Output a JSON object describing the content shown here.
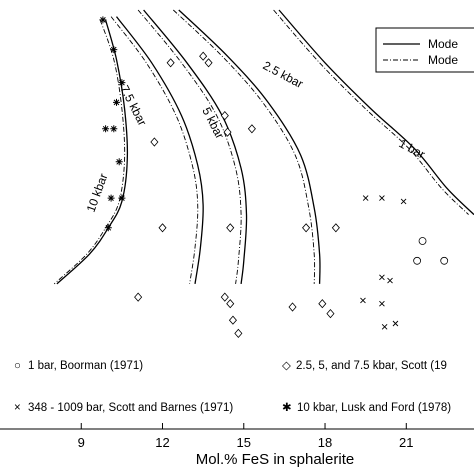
{
  "chart_data": {
    "type": "line",
    "xlabel": "Mol.% FeS in sphalerite",
    "ylabel": "",
    "xlim": [
      6,
      23.5
    ],
    "ylim": [
      0,
      1
    ],
    "xticks": [
      "9",
      "12",
      "15",
      "18",
      "21"
    ],
    "legend": {
      "placement": "top-right",
      "entries": [
        {
          "label": "Mode",
          "style": "solid"
        },
        {
          "label": "Mode",
          "style": "dashed"
        }
      ]
    },
    "curve_labels": [
      "10 kbar",
      "7.5 kbar",
      "5 kbar",
      "2.5 kbar",
      "1 bar"
    ],
    "curves": [
      {
        "name": "10 kbar",
        "solid": [
          [
            9.9,
            0.97
          ],
          [
            10.3,
            0.85
          ],
          [
            10.6,
            0.7
          ],
          [
            10.7,
            0.55
          ],
          [
            10.5,
            0.42
          ],
          [
            10.0,
            0.34
          ],
          [
            9.3,
            0.26
          ],
          [
            8.1,
            0.17
          ]
        ],
        "dashed": [
          [
            9.7,
            0.97
          ],
          [
            10.2,
            0.85
          ],
          [
            10.5,
            0.7
          ],
          [
            10.6,
            0.55
          ],
          [
            10.4,
            0.42
          ],
          [
            9.9,
            0.34
          ],
          [
            9.2,
            0.26
          ],
          [
            8.0,
            0.17
          ]
        ]
      },
      {
        "name": "7.5 kbar",
        "solid": [
          [
            10.3,
            0.98
          ],
          [
            11.6,
            0.84
          ],
          [
            12.7,
            0.68
          ],
          [
            13.3,
            0.53
          ],
          [
            13.5,
            0.41
          ],
          [
            13.4,
            0.28
          ],
          [
            13.2,
            0.17
          ]
        ],
        "dashed": [
          [
            10.1,
            0.98
          ],
          [
            11.4,
            0.84
          ],
          [
            12.5,
            0.68
          ],
          [
            13.1,
            0.53
          ],
          [
            13.3,
            0.41
          ],
          [
            13.2,
            0.28
          ],
          [
            13.0,
            0.17
          ]
        ]
      },
      {
        "name": "5 kbar",
        "solid": [
          [
            11.3,
            1.0
          ],
          [
            12.9,
            0.84
          ],
          [
            14.2,
            0.68
          ],
          [
            14.9,
            0.52
          ],
          [
            15.1,
            0.38
          ],
          [
            15.0,
            0.24
          ],
          [
            14.9,
            0.17
          ]
        ],
        "dashed": [
          [
            11.1,
            1.0
          ],
          [
            12.7,
            0.84
          ],
          [
            14.0,
            0.68
          ],
          [
            14.7,
            0.52
          ],
          [
            14.9,
            0.38
          ],
          [
            14.8,
            0.24
          ],
          [
            14.7,
            0.17
          ]
        ]
      },
      {
        "name": "2.5 kbar",
        "solid": [
          [
            12.6,
            1.0
          ],
          [
            14.4,
            0.86
          ],
          [
            15.9,
            0.72
          ],
          [
            17.1,
            0.56
          ],
          [
            17.6,
            0.4
          ],
          [
            17.8,
            0.26
          ],
          [
            17.8,
            0.17
          ]
        ],
        "dashed": [
          [
            12.4,
            1.0
          ],
          [
            14.2,
            0.86
          ],
          [
            15.7,
            0.72
          ],
          [
            16.9,
            0.56
          ],
          [
            17.4,
            0.4
          ],
          [
            17.6,
            0.26
          ],
          [
            17.6,
            0.17
          ]
        ]
      },
      {
        "name": "1 bar",
        "solid": [
          [
            16.3,
            1.0
          ],
          [
            18.0,
            0.84
          ],
          [
            19.7,
            0.7
          ],
          [
            21.3,
            0.58
          ],
          [
            22.5,
            0.46
          ],
          [
            23.5,
            0.38
          ]
        ],
        "dashed": [
          [
            16.1,
            1.0
          ],
          [
            17.8,
            0.84
          ],
          [
            19.5,
            0.7
          ],
          [
            21.1,
            0.58
          ],
          [
            22.3,
            0.46
          ],
          [
            23.3,
            0.38
          ]
        ]
      }
    ],
    "points": [
      {
        "marker": "star",
        "x": 9.8,
        "y": 0.97
      },
      {
        "marker": "star",
        "x": 10.2,
        "y": 0.88
      },
      {
        "marker": "star",
        "x": 10.5,
        "y": 0.78
      },
      {
        "marker": "star",
        "x": 10.3,
        "y": 0.72
      },
      {
        "marker": "star",
        "x": 9.9,
        "y": 0.64
      },
      {
        "marker": "star",
        "x": 10.2,
        "y": 0.64
      },
      {
        "marker": "star",
        "x": 10.4,
        "y": 0.54
      },
      {
        "marker": "star",
        "x": 10.5,
        "y": 0.43
      },
      {
        "marker": "star",
        "x": 10.1,
        "y": 0.43
      },
      {
        "marker": "star",
        "x": 10.0,
        "y": 0.34
      },
      {
        "marker": "diamond",
        "x": 12.3,
        "y": 0.84
      },
      {
        "marker": "diamond",
        "x": 13.5,
        "y": 0.86
      },
      {
        "marker": "diamond",
        "x": 13.7,
        "y": 0.84
      },
      {
        "marker": "diamond",
        "x": 14.3,
        "y": 0.68
      },
      {
        "marker": "diamond",
        "x": 11.7,
        "y": 0.6
      },
      {
        "marker": "diamond",
        "x": 14.4,
        "y": 0.63
      },
      {
        "marker": "diamond",
        "x": 15.3,
        "y": 0.64
      },
      {
        "marker": "diamond",
        "x": 12.0,
        "y": 0.34
      },
      {
        "marker": "diamond",
        "x": 14.5,
        "y": 0.34
      },
      {
        "marker": "diamond",
        "x": 11.1,
        "y": 0.13
      },
      {
        "marker": "diamond",
        "x": 14.3,
        "y": 0.13
      },
      {
        "marker": "diamond",
        "x": 14.5,
        "y": 0.11
      },
      {
        "marker": "diamond",
        "x": 14.6,
        "y": 0.06
      },
      {
        "marker": "diamond",
        "x": 14.8,
        "y": 0.02
      },
      {
        "marker": "diamond",
        "x": 17.3,
        "y": 0.34
      },
      {
        "marker": "diamond",
        "x": 18.4,
        "y": 0.34
      },
      {
        "marker": "diamond",
        "x": 16.8,
        "y": 0.1
      },
      {
        "marker": "diamond",
        "x": 17.9,
        "y": 0.11
      },
      {
        "marker": "diamond",
        "x": 18.2,
        "y": 0.08
      },
      {
        "marker": "cross",
        "x": 19.5,
        "y": 0.43
      },
      {
        "marker": "cross",
        "x": 20.1,
        "y": 0.43
      },
      {
        "marker": "cross",
        "x": 20.9,
        "y": 0.42
      },
      {
        "marker": "cross",
        "x": 20.1,
        "y": 0.19
      },
      {
        "marker": "cross",
        "x": 20.4,
        "y": 0.18
      },
      {
        "marker": "cross",
        "x": 19.4,
        "y": 0.12
      },
      {
        "marker": "cross",
        "x": 20.1,
        "y": 0.11
      },
      {
        "marker": "cross",
        "x": 20.2,
        "y": 0.04
      },
      {
        "marker": "cross",
        "x": 20.6,
        "y": 0.05
      },
      {
        "marker": "circle",
        "x": 21.6,
        "y": 0.3
      },
      {
        "marker": "circle",
        "x": 21.4,
        "y": 0.24
      },
      {
        "marker": "circle",
        "x": 22.4,
        "y": 0.24
      }
    ],
    "footnotes": [
      {
        "marker": "circle",
        "text": "1 bar, Boorman (1971)"
      },
      {
        "marker": "diamond",
        "text": "2.5, 5, and 7.5 kbar, Scott (19"
      },
      {
        "marker": "cross",
        "text": "348 - 1009 bar, Scott and Barnes (1971)"
      },
      {
        "marker": "star",
        "text": "10 kbar, Lusk and Ford (1978)"
      }
    ]
  }
}
